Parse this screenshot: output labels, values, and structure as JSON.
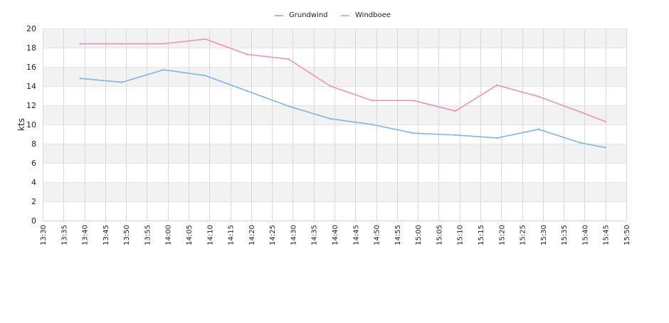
{
  "chart_data": {
    "type": "line",
    "ylabel": "kts",
    "ylim": [
      0,
      20
    ],
    "y_ticks": [
      0,
      2,
      4,
      6,
      8,
      10,
      12,
      14,
      16,
      18,
      20
    ],
    "x_range": [
      "13:30",
      "15:50"
    ],
    "x_ticks": [
      "13:30",
      "13:35",
      "13:40",
      "13:45",
      "13:50",
      "13:55",
      "14:00",
      "14:05",
      "14:10",
      "14:15",
      "14:20",
      "14:25",
      "14:30",
      "14:35",
      "14:40",
      "14:45",
      "14:50",
      "14:55",
      "15:00",
      "15:05",
      "15:10",
      "15:15",
      "15:20",
      "15:25",
      "15:30",
      "15:35",
      "15:40",
      "15:45",
      "15:50"
    ],
    "grid": true,
    "legend_position": "top-center",
    "series": [
      {
        "name": "Grundwind",
        "color": "#7cb5ec",
        "points": [
          {
            "x": "13:39",
            "y": 14.8
          },
          {
            "x": "13:49",
            "y": 14.4
          },
          {
            "x": "13:59",
            "y": 15.7
          },
          {
            "x": "14:09",
            "y": 15.1
          },
          {
            "x": "14:19",
            "y": 13.5
          },
          {
            "x": "14:29",
            "y": 11.9
          },
          {
            "x": "14:39",
            "y": 10.6
          },
          {
            "x": "14:49",
            "y": 10.0
          },
          {
            "x": "14:59",
            "y": 9.1
          },
          {
            "x": "15:09",
            "y": 8.9
          },
          {
            "x": "15:19",
            "y": 8.6
          },
          {
            "x": "15:29",
            "y": 9.5
          },
          {
            "x": "15:39",
            "y": 8.1
          },
          {
            "x": "15:45",
            "y": 7.6
          }
        ]
      },
      {
        "name": "Windboee",
        "color": "#f28fbf",
        "points": [
          {
            "x": "13:39",
            "y": 18.4
          },
          {
            "x": "13:49",
            "y": 18.4
          },
          {
            "x": "13:59",
            "y": 18.4
          },
          {
            "x": "14:09",
            "y": 18.9
          },
          {
            "x": "14:19",
            "y": 17.3
          },
          {
            "x": "14:29",
            "y": 16.8
          },
          {
            "x": "14:39",
            "y": 14.0
          },
          {
            "x": "14:49",
            "y": 12.5
          },
          {
            "x": "14:59",
            "y": 12.5
          },
          {
            "x": "15:09",
            "y": 11.4
          },
          {
            "x": "15:19",
            "y": 14.1
          },
          {
            "x": "15:29",
            "y": 12.9
          },
          {
            "x": "15:39",
            "y": 11.3
          },
          {
            "x": "15:45",
            "y": 10.3
          }
        ]
      }
    ]
  }
}
